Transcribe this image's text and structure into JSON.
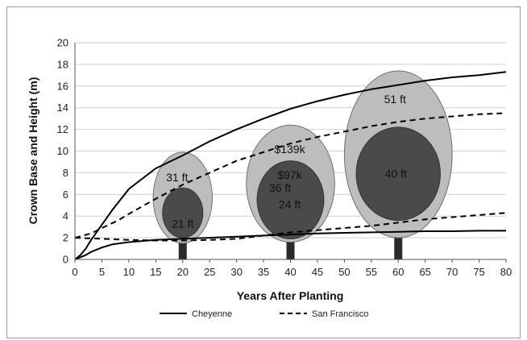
{
  "chart_data": {
    "type": "line",
    "title": "",
    "xlabel": "Years After Planting",
    "ylabel": "Crown Base and Height (m)",
    "xlim": [
      0,
      80
    ],
    "ylim": [
      0,
      20
    ],
    "x_ticks": [
      0,
      5,
      10,
      15,
      20,
      25,
      30,
      35,
      40,
      45,
      50,
      55,
      60,
      65,
      70,
      75,
      80
    ],
    "y_ticks": [
      0,
      2,
      4,
      6,
      8,
      10,
      12,
      14,
      16,
      18,
      20
    ],
    "grid": "horizontal",
    "legend_position": "bottom",
    "series": [
      {
        "name": "Cheyenne",
        "style": "solid",
        "role": "tree height",
        "x": [
          0,
          1,
          2,
          3,
          5,
          7,
          10,
          15,
          20,
          25,
          30,
          35,
          40,
          45,
          50,
          55,
          60,
          65,
          70,
          75,
          80
        ],
        "y": [
          0,
          0.4,
          1.0,
          1.8,
          3.2,
          4.6,
          6.5,
          8.4,
          9.6,
          10.9,
          12.0,
          13.0,
          13.9,
          14.6,
          15.2,
          15.7,
          16.1,
          16.5,
          16.8,
          17.0,
          17.3
        ]
      },
      {
        "name": "Cheyenne",
        "style": "solid",
        "role": "crown base",
        "x": [
          0,
          1,
          2,
          3,
          5,
          7,
          10,
          15,
          20,
          25,
          30,
          35,
          40,
          45,
          50,
          55,
          60,
          65,
          70,
          75,
          80
        ],
        "y": [
          0,
          0.2,
          0.4,
          0.7,
          1.1,
          1.4,
          1.6,
          1.8,
          1.9,
          2.0,
          2.1,
          2.2,
          2.3,
          2.4,
          2.45,
          2.5,
          2.55,
          2.6,
          2.6,
          2.65,
          2.65
        ]
      },
      {
        "name": "San Francisco",
        "style": "dashed",
        "role": "tree height",
        "x": [
          0,
          3,
          5,
          8,
          10,
          15,
          20,
          25,
          30,
          35,
          40,
          45,
          50,
          55,
          60,
          65,
          70,
          75,
          80
        ],
        "y": [
          2.0,
          2.4,
          2.9,
          3.6,
          4.2,
          5.6,
          6.9,
          8.0,
          9.1,
          9.9,
          10.7,
          11.3,
          11.8,
          12.3,
          12.7,
          13.0,
          13.2,
          13.4,
          13.5
        ]
      },
      {
        "name": "San Francisco",
        "style": "dashed",
        "role": "crown base",
        "x": [
          0,
          5,
          10,
          15,
          20,
          25,
          30,
          35,
          40,
          45,
          50,
          55,
          60,
          65,
          70,
          75,
          80
        ],
        "y": [
          2.0,
          1.9,
          1.8,
          1.75,
          1.75,
          1.8,
          1.9,
          2.2,
          2.5,
          2.7,
          2.9,
          3.1,
          3.4,
          3.7,
          3.9,
          4.1,
          4.3
        ]
      }
    ],
    "crowns": [
      {
        "year": 20,
        "outer": {
          "label": "31 ft",
          "center_y": 5.7,
          "ry": 4.2,
          "rx": 8.5
        },
        "inner": {
          "label": "21 ft",
          "center_y": 4.3,
          "ry": 2.3,
          "rx": 5.8
        },
        "trunk_top": 2.0
      },
      {
        "year": 40,
        "outer": {
          "label": "36 ft",
          "extra_label": "$139k",
          "center_y": 7.0,
          "ry": 5.4,
          "rx": 12.7
        },
        "inner": {
          "label": "24 ft",
          "extra_label": "$97k",
          "center_y": 5.5,
          "ry": 3.6,
          "rx": 9.6
        },
        "trunk_top": 2.4
      },
      {
        "year": 60,
        "outer": {
          "label": "51 ft",
          "center_y": 9.7,
          "ry": 7.7,
          "rx": 15.5
        },
        "inner": {
          "label": "40 ft",
          "center_y": 7.9,
          "ry": 4.3,
          "rx": 12.1
        },
        "trunk_top": 2.5
      }
    ],
    "colors": {
      "outer_crown": "#bdbdbd",
      "inner_crown": "#4a4a4a",
      "trunk": "#2a2a2a",
      "line": "#000000",
      "grid": "#d0d0d0"
    }
  }
}
